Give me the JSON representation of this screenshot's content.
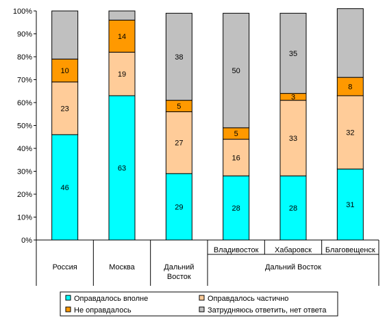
{
  "chart_data": {
    "type": "bar",
    "stacked": true,
    "normalized": true,
    "ylim": [
      0,
      100
    ],
    "yticks": [
      "0%",
      "10%",
      "20%",
      "30%",
      "40%",
      "50%",
      "60%",
      "70%",
      "80%",
      "90%",
      "100%"
    ],
    "grid": false,
    "legend_position": "bottom",
    "categories": [
      "Россия",
      "Москва",
      "Дальний Восток",
      "Владивосток",
      "Хабаровск",
      "Благовещенск"
    ],
    "group_labels": [
      {
        "label": "Россия",
        "members": [
          "Россия"
        ]
      },
      {
        "label": "Москва",
        "members": [
          "Москва"
        ]
      },
      {
        "label": "Дальний Восток",
        "members": [
          "Дальний Восток"
        ]
      },
      {
        "label": "Дальний Восток",
        "members": [
          "Владивосток",
          "Хабаровск",
          "Благовещенск"
        ]
      }
    ],
    "series": [
      {
        "name": "Оправдалось вполне",
        "color": "#00ffff",
        "values": [
          46,
          63,
          29,
          28,
          28,
          31
        ]
      },
      {
        "name": "Оправдалось частично",
        "color": "#ffcc99",
        "values": [
          23,
          19,
          27,
          16,
          33,
          32
        ]
      },
      {
        "name": "Не оправдалось",
        "color": "#ff9900",
        "values": [
          10,
          14,
          5,
          5,
          3,
          8
        ]
      },
      {
        "name": "Затрудняюсь ответить, нет ответа",
        "color": "#c0c0c0",
        "values": [
          21,
          4,
          38,
          50,
          35,
          30
        ]
      }
    ],
    "labels_shown": [
      [
        true,
        true,
        true,
        true,
        true,
        true
      ],
      [
        true,
        true,
        true,
        true,
        true,
        true
      ],
      [
        true,
        true,
        true,
        true,
        true,
        true
      ],
      [
        false,
        false,
        true,
        true,
        true,
        false
      ]
    ],
    "legend_order": [
      "Оправдалось вполне",
      "Оправдалось частично",
      "Не оправдалось",
      "Затрудняюсь ответить, нет ответа"
    ]
  }
}
